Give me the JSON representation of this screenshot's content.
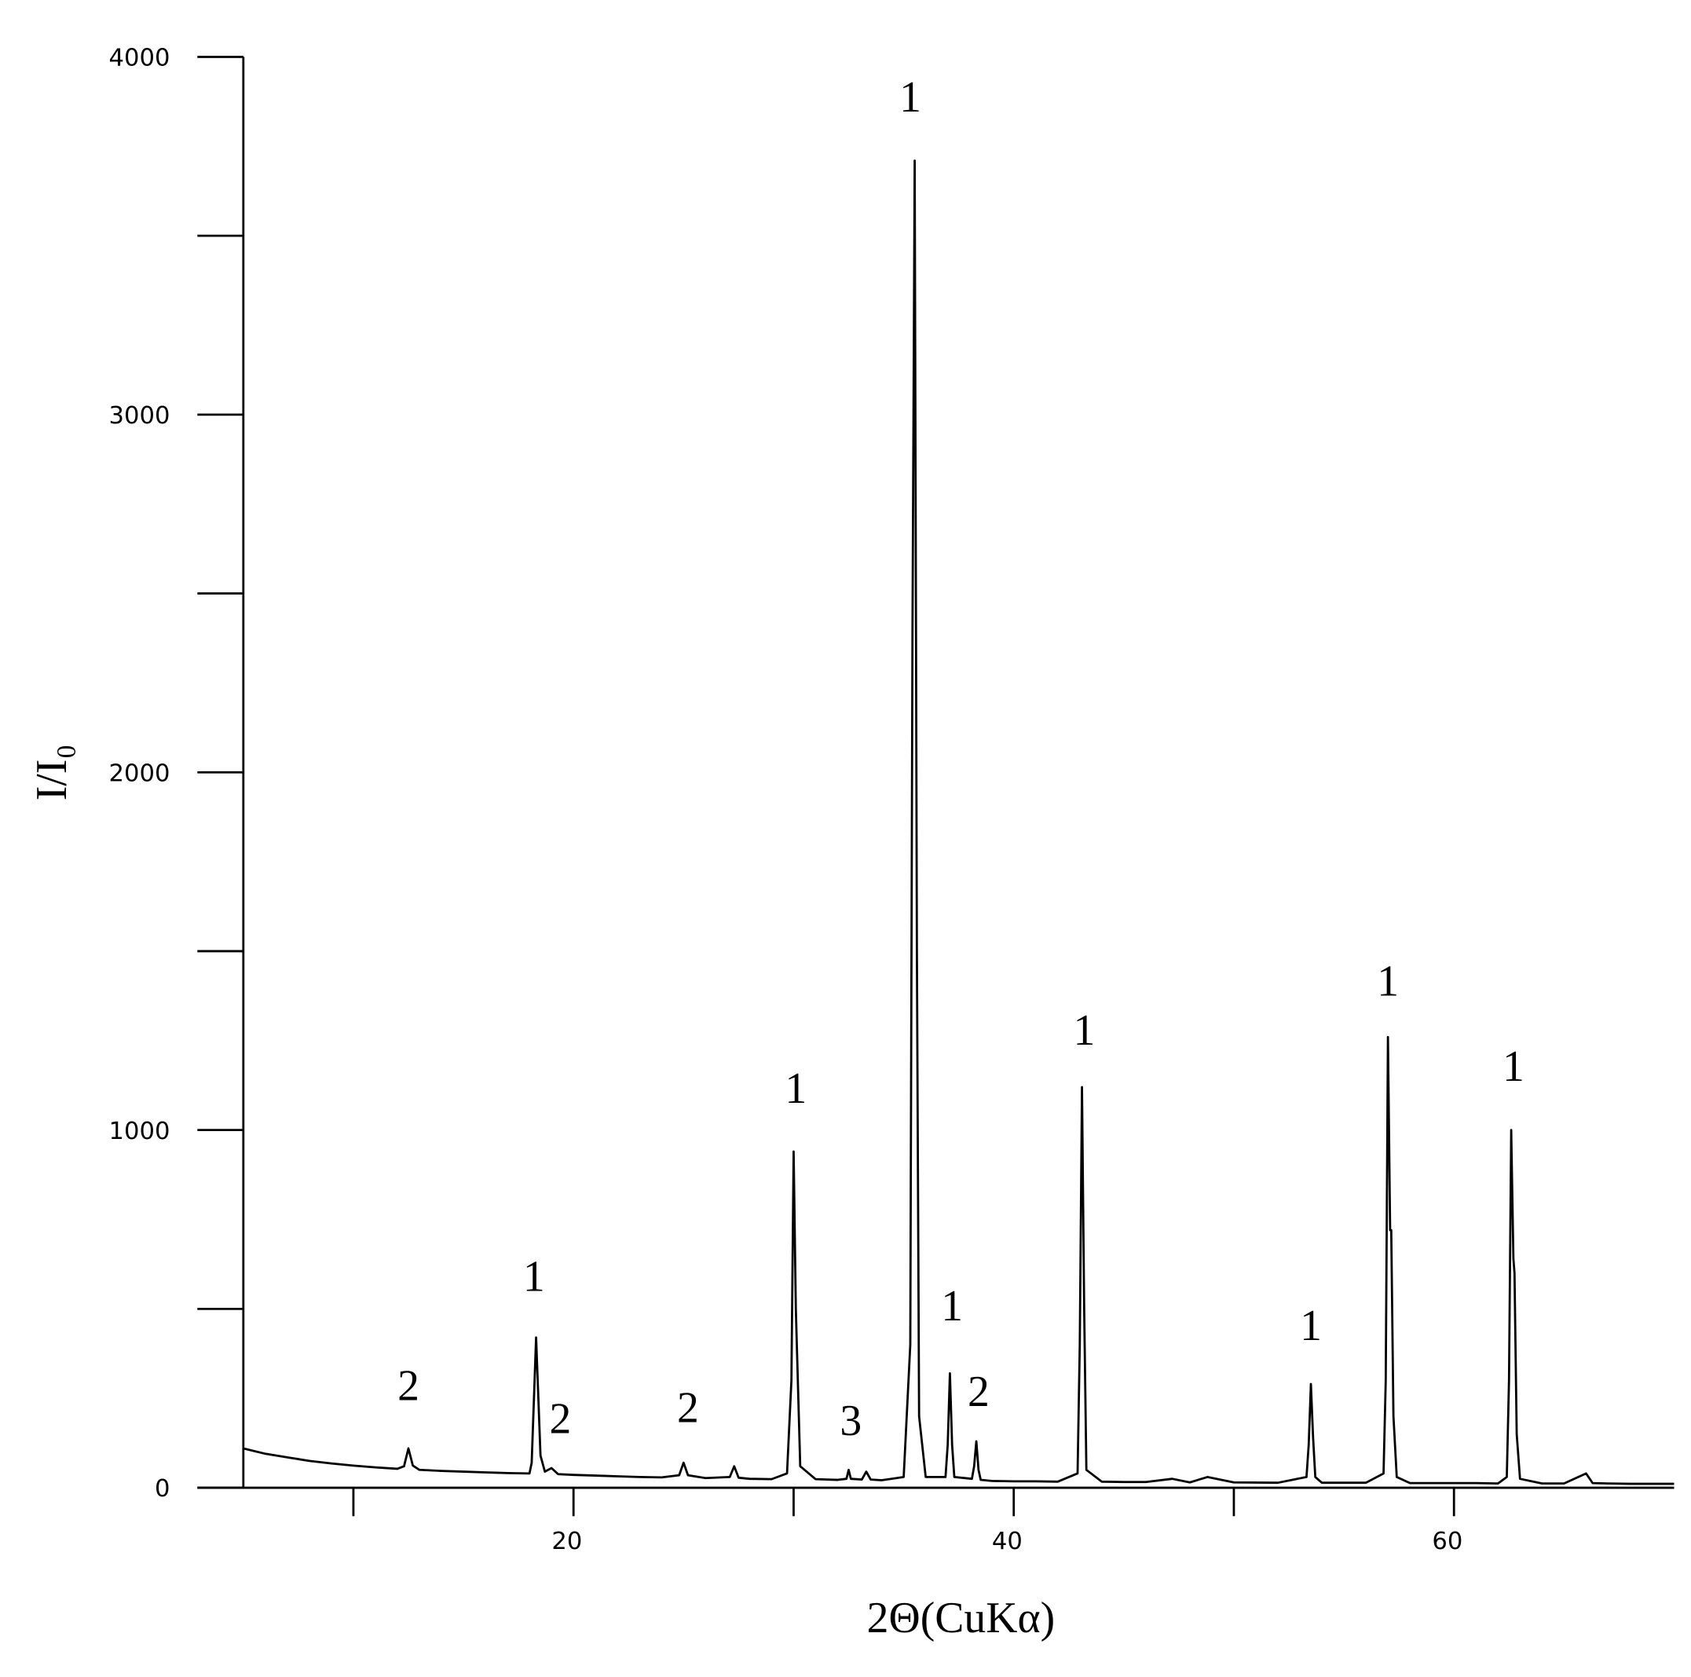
{
  "chart_data": {
    "type": "line",
    "x_label": "2Θ(CuKα)",
    "y_label": "I/I₀",
    "color": "#000000",
    "xlim": [
      5,
      70
    ],
    "ylim": [
      0,
      4000
    ],
    "xticks": [
      20,
      40,
      60
    ],
    "xminor_ticks": [
      10,
      30,
      50
    ],
    "yticks": [
      0,
      1000,
      2000,
      3000,
      4000
    ],
    "yminor_ticks": [
      500,
      1500,
      2500,
      3500
    ],
    "x": [
      5,
      6,
      7,
      8,
      9,
      10,
      11,
      12,
      12.3,
      12.5,
      12.7,
      13,
      14,
      15,
      16,
      17,
      18,
      18.1,
      18.3,
      18.5,
      18.7,
      19.0,
      19.3,
      20,
      21,
      22,
      23,
      24,
      24.8,
      25.0,
      25.2,
      26,
      27.1,
      27.3,
      27.5,
      28,
      29,
      29.7,
      29.9,
      30.0,
      30.1,
      30.3,
      31,
      32,
      32.4,
      32.5,
      32.6,
      33.1,
      33.3,
      33.5,
      34,
      35,
      35.3,
      35.4,
      35.5,
      35.6,
      35.7,
      36,
      36.9,
      37.0,
      37.1,
      37.2,
      37.3,
      38.1,
      38.2,
      38.3,
      38.4,
      38.5,
      39,
      40,
      41,
      42,
      42.9,
      43.0,
      43.1,
      43.2,
      43.3,
      44,
      45,
      46,
      47.2,
      48,
      48.8,
      50,
      52,
      53.3,
      53.4,
      53.5,
      53.6,
      53.7,
      54,
      55,
      56,
      56.8,
      56.9,
      57.0,
      57.1,
      57.15,
      57.25,
      57.4,
      58,
      59,
      60,
      61,
      62,
      62.4,
      62.5,
      62.6,
      62.7,
      62.75,
      62.85,
      63.0,
      64,
      65,
      66.0,
      66.3,
      67,
      68,
      69,
      70
    ],
    "values": [
      110,
      95,
      85,
      75,
      68,
      62,
      57,
      53,
      60,
      110,
      62,
      50,
      47,
      45,
      43,
      41,
      40,
      70,
      420,
      90,
      45,
      55,
      38,
      36,
      34,
      32,
      30,
      29,
      35,
      70,
      35,
      27,
      30,
      60,
      28,
      25,
      24,
      40,
      300,
      940,
      500,
      60,
      24,
      22,
      25,
      50,
      25,
      23,
      45,
      23,
      21,
      30,
      400,
      2400,
      3710,
      1500,
      200,
      30,
      30,
      120,
      320,
      120,
      30,
      25,
      60,
      130,
      50,
      22,
      19,
      18,
      18,
      17,
      40,
      400,
      1120,
      500,
      50,
      17,
      16,
      16,
      25,
      15,
      30,
      15,
      14,
      30,
      120,
      290,
      140,
      30,
      14,
      14,
      14,
      40,
      300,
      1260,
      720,
      720,
      200,
      30,
      13,
      13,
      13,
      13,
      12,
      30,
      300,
      1000,
      640,
      600,
      150,
      25,
      12,
      12,
      40,
      13,
      12,
      11,
      11,
      11
    ],
    "annotations": [
      {
        "text": "2",
        "x": 12.5,
        "y": 245
      },
      {
        "text": "1",
        "x": 18.2,
        "y": 550
      },
      {
        "text": "2",
        "x": 19.4,
        "y": 153
      },
      {
        "text": "2",
        "x": 25.2,
        "y": 183
      },
      {
        "text": "1",
        "x": 30.1,
        "y": 1076
      },
      {
        "text": "3",
        "x": 32.6,
        "y": 147
      },
      {
        "text": "1",
        "x": 35.3,
        "y": 3847
      },
      {
        "text": "1",
        "x": 37.2,
        "y": 468
      },
      {
        "text": "2",
        "x": 38.4,
        "y": 229
      },
      {
        "text": "1",
        "x": 43.2,
        "y": 1239
      },
      {
        "text": "1",
        "x": 53.5,
        "y": 413
      },
      {
        "text": "1",
        "x": 57.0,
        "y": 1376
      },
      {
        "text": "1",
        "x": 62.7,
        "y": 1138
      }
    ]
  }
}
